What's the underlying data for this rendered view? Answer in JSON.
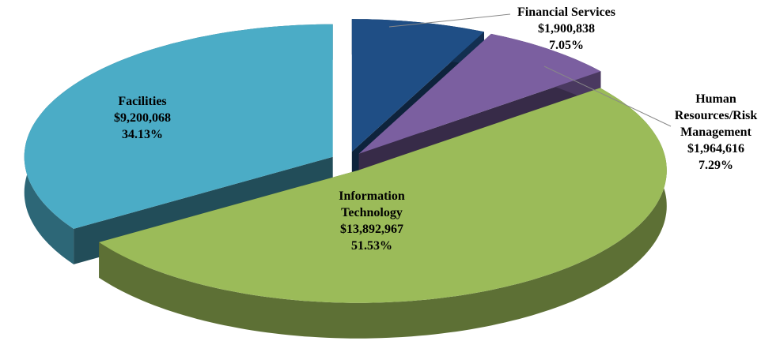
{
  "chart_data": {
    "type": "pie",
    "categories": [
      "Financial Services",
      "Human Resources/Risk Management",
      "Information Technology",
      "Facilities"
    ],
    "values": [
      7.05,
      7.29,
      51.53,
      34.13
    ],
    "value_labels": [
      "7.05%",
      "7.29%",
      "51.53%",
      "34.13%"
    ],
    "amounts": [
      1900838,
      1964616,
      13892967,
      9200068
    ],
    "amount_labels": [
      "$1,900,838",
      "$1,964,616",
      "$13,892,967",
      "$9,200,068"
    ],
    "colors": [
      "#1f4e85",
      "#7b5fa0",
      "#9bbb59",
      "#4bacc6"
    ]
  }
}
